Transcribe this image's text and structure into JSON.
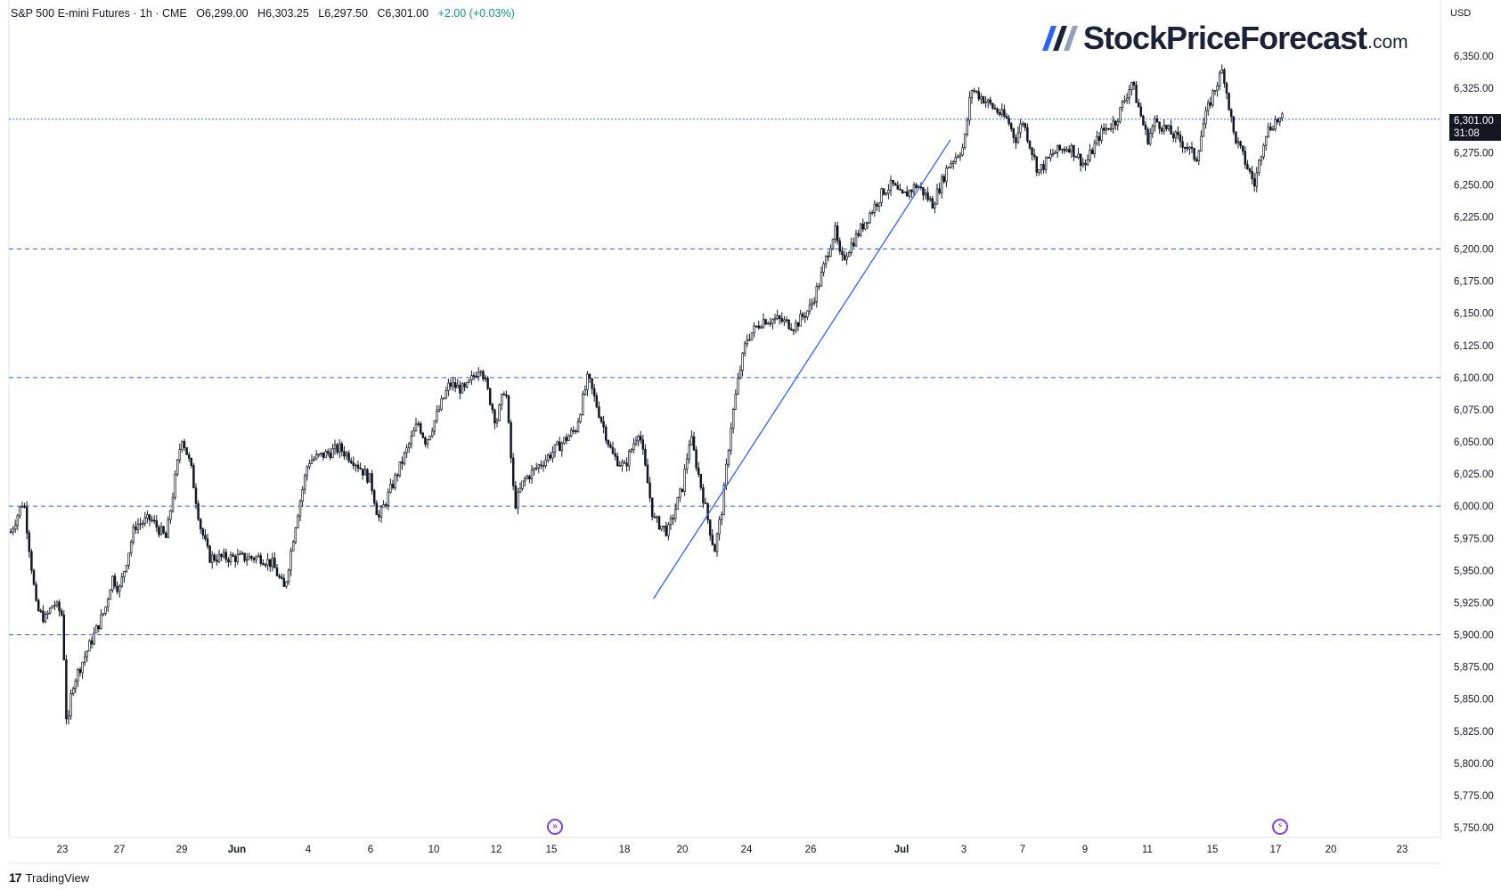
{
  "header": {
    "symbol": "S&P 500 E-mini Futures · 1h · CME",
    "open": "O6,299.00",
    "high": "H6,303.25",
    "low": "L6,297.50",
    "close": "C6,301.00",
    "change": "+2.00 (+0.03%)"
  },
  "brand": {
    "name": "StockPriceForecast",
    "suffix": ".com"
  },
  "currency": "USD",
  "last_price": {
    "value": "6,301.00",
    "countdown": "31:08"
  },
  "footer": {
    "logo_text": "TradingView",
    "logo_mark": "17"
  },
  "colors": {
    "candle": "#131722",
    "levels": "#2962ff",
    "trendline": "#2962ff",
    "event_icon": "#7b3fe4"
  },
  "chart_data": {
    "type": "candlestick",
    "title": "S&P 500 E-mini Futures · 1h · CME",
    "ylim": [
      5740,
      6375
    ],
    "y_ticks": [
      5750,
      5775,
      5800,
      5825,
      5850,
      5875,
      5900,
      5925,
      5950,
      5975,
      6000,
      6025,
      6050,
      6075,
      6100,
      6125,
      6150,
      6175,
      6200,
      6225,
      6250,
      6275,
      6300,
      6325,
      6350
    ],
    "y_tick_labels": [
      "5,750.00",
      "5,775.00",
      "5,800.00",
      "5,825.00",
      "5,850.00",
      "5,875.00",
      "5,900.00",
      "5,925.00",
      "5,950.00",
      "5,975.00",
      "6,000.00",
      "6,025.00",
      "6,050.00",
      "6,075.00",
      "6,100.00",
      "6,125.00",
      "6,150.00",
      "6,175.00",
      "6,200.00",
      "6,225.00",
      "6,250.00",
      "6,275.00",
      "6,300.00",
      "6,325.00",
      "6,350.00"
    ],
    "x_tick_labels": [
      "23",
      "27",
      "29",
      "Jun",
      "4",
      "6",
      "10",
      "12",
      "15",
      "18",
      "20",
      "24",
      "26",
      "Jul",
      "3",
      "7",
      "9",
      "11",
      "15",
      "17",
      "20",
      "23"
    ],
    "x_tick_bold": [
      "Jun",
      "Jul"
    ],
    "horizontal_levels": [
      5900,
      6000,
      6100,
      6200,
      6301
    ],
    "trendline": {
      "from": {
        "date": "Jun 19",
        "price": 5928
      },
      "to": {
        "date": "Jul 2",
        "price": 6285
      }
    },
    "close_path": [
      [
        "May 21",
        5980
      ],
      [
        "May 21",
        6005
      ],
      [
        "May 22",
        5920
      ],
      [
        "May 22",
        5912
      ],
      [
        "May 22",
        5925
      ],
      [
        "May 23",
        5915
      ],
      [
        "May 23",
        5820
      ],
      [
        "May 23",
        5860
      ],
      [
        "May 26",
        5920
      ],
      [
        "May 26",
        5945
      ],
      [
        "May 27",
        5935
      ],
      [
        "May 27",
        5985
      ],
      [
        "May 28",
        5990
      ],
      [
        "May 28",
        5975
      ],
      [
        "May 29",
        6055
      ],
      [
        "May 29",
        6030
      ],
      [
        "May 30",
        5985
      ],
      [
        "May 30",
        5960
      ],
      [
        "Jun 2",
        5960
      ],
      [
        "Jun 2",
        5955
      ],
      [
        "Jun 3",
        5935
      ],
      [
        "Jun 3",
        5990
      ],
      [
        "Jun 4",
        6035
      ],
      [
        "Jun 4",
        6040
      ],
      [
        "Jun 5",
        6045
      ],
      [
        "Jun 5",
        6035
      ],
      [
        "Jun 6",
        6020
      ],
      [
        "Jun 6",
        5990
      ],
      [
        "Jun 9",
        6065
      ],
      [
        "Jun 9",
        6050
      ],
      [
        "Jun 10",
        6065
      ],
      [
        "Jun 10",
        6095
      ],
      [
        "Jun 11",
        6090
      ],
      [
        "Jun 11",
        6110
      ],
      [
        "Jun 12",
        6065
      ],
      [
        "Jun 12",
        6095
      ],
      [
        "Jun 13",
        6000
      ],
      [
        "Jun 13",
        6020
      ],
      [
        "Jun 16",
        6060
      ],
      [
        "Jun 16",
        6100
      ],
      [
        "Jun 17",
        6070
      ],
      [
        "Jun 17",
        6040
      ],
      [
        "Jun 18",
        6030
      ],
      [
        "Jun 18",
        6060
      ],
      [
        "Jun 19",
        5990
      ],
      [
        "Jun 19",
        5980
      ],
      [
        "Jun 20",
        6015
      ],
      [
        "Jun 20",
        6055
      ],
      [
        "Jun 22",
        5965
      ],
      [
        "Jun 22",
        6000
      ],
      [
        "Jun 23",
        6060
      ],
      [
        "Jun 23",
        6100
      ],
      [
        "Jun 24",
        6130
      ],
      [
        "Jun 24",
        6145
      ],
      [
        "Jun 25",
        6145
      ],
      [
        "Jun 25",
        6140
      ],
      [
        "Jun 26",
        6155
      ],
      [
        "Jun 26",
        6175
      ],
      [
        "Jun 27",
        6200
      ],
      [
        "Jun 27",
        6215
      ],
      [
        "Jun 27",
        6190
      ],
      [
        "Jun 30",
        6245
      ],
      [
        "Jun 30",
        6250
      ],
      [
        "Jul 1",
        6240
      ],
      [
        "Jul 1",
        6250
      ],
      [
        "Jul 2",
        6235
      ],
      [
        "Jul 2",
        6265
      ],
      [
        "Jul 3",
        6280
      ],
      [
        "Jul 3",
        6325
      ],
      [
        "Jul 6",
        6300
      ],
      [
        "Jul 6",
        6285
      ],
      [
        "Jul 7",
        6300
      ],
      [
        "Jul 7",
        6260
      ],
      [
        "Jul 8",
        6275
      ],
      [
        "Jul 8",
        6280
      ],
      [
        "Jul 9",
        6265
      ],
      [
        "Jul 9",
        6290
      ],
      [
        "Jul 10",
        6300
      ],
      [
        "Jul 10",
        6330
      ],
      [
        "Jul 11",
        6285
      ],
      [
        "Jul 11",
        6300
      ],
      [
        "Jul 13",
        6280
      ],
      [
        "Jul 14",
        6270
      ],
      [
        "Jul 14",
        6300
      ],
      [
        "Jul 15",
        6320
      ],
      [
        "Jul 15",
        6340
      ],
      [
        "Jul 15",
        6290
      ],
      [
        "Jul 16",
        6270
      ],
      [
        "Jul 16",
        6250
      ],
      [
        "Jul 16",
        6290
      ],
      [
        "Jul 17",
        6300
      ],
      [
        "Jul 17",
        6301
      ]
    ]
  }
}
